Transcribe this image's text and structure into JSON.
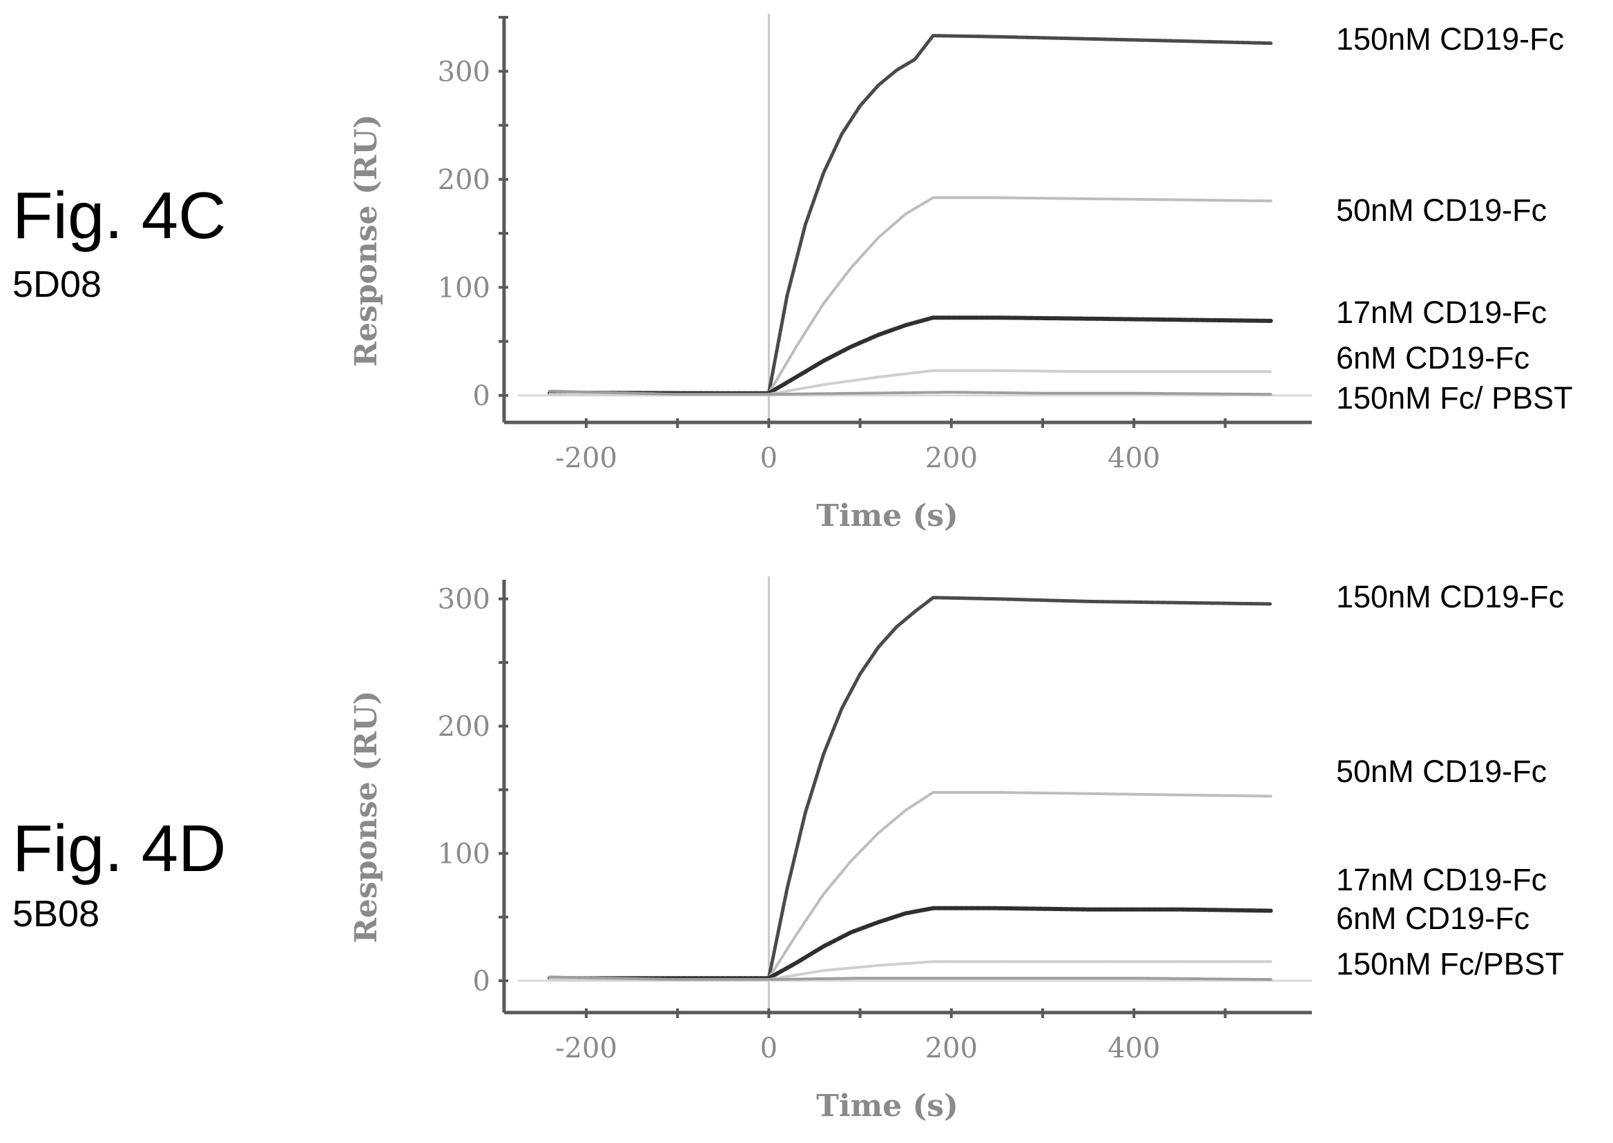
{
  "chart_data": [
    {
      "type": "line",
      "figure_label": "Fig. 4C",
      "clone": "5D08",
      "xlabel": "Time (s)",
      "ylabel": "Response (RU)",
      "xlim": [
        -290,
        595
      ],
      "ylim": [
        -25,
        350
      ],
      "x_ticks": [
        -200,
        0,
        200,
        400
      ],
      "y_ticks": [
        0,
        100,
        200,
        300
      ],
      "grid": false,
      "legend": "right, inline labels",
      "series": [
        {
          "name": "150nM CD19-Fc",
          "color": "#4a4a4a",
          "width": 5,
          "x": [
            -240,
            0,
            20,
            40,
            60,
            80,
            100,
            120,
            140,
            160,
            180,
            250,
            350,
            450,
            550
          ],
          "y": [
            3,
            2,
            92,
            158,
            206,
            242,
            268,
            287,
            301,
            311,
            333,
            332,
            330,
            328,
            326
          ]
        },
        {
          "name": "50nM CD19-Fc",
          "color": "#bdbdbd",
          "width": 4,
          "x": [
            -240,
            0,
            30,
            60,
            90,
            120,
            150,
            180,
            250,
            350,
            450,
            550
          ],
          "y": [
            2,
            2,
            45,
            85,
            118,
            146,
            168,
            183,
            183,
            182,
            181,
            180
          ]
        },
        {
          "name": "17nM CD19-Fc",
          "color": "#2f2f2f",
          "width": 6,
          "x": [
            -240,
            0,
            30,
            60,
            90,
            120,
            150,
            180,
            250,
            350,
            450,
            550
          ],
          "y": [
            2,
            2,
            17,
            32,
            45,
            56,
            65,
            72,
            72,
            71,
            70,
            69
          ]
        },
        {
          "name": "6nM CD19-Fc",
          "color": "#cfcfcf",
          "width": 4,
          "x": [
            -240,
            0,
            60,
            120,
            180,
            250,
            350,
            450,
            550
          ],
          "y": [
            1,
            1,
            10,
            17,
            23,
            23,
            22,
            22,
            22
          ]
        },
        {
          "name": "150nM Fc/ PBST",
          "color": "#9e9e9e",
          "width": 4,
          "x": [
            -240,
            -100,
            0,
            100,
            200,
            300,
            400,
            550
          ],
          "y": [
            4,
            1,
            1,
            2,
            3,
            2,
            2,
            1
          ]
        }
      ]
    },
    {
      "type": "line",
      "figure_label": "Fig. 4D",
      "clone": "5B08",
      "xlabel": "Time (s)",
      "ylabel": "Response (RU)",
      "xlim": [
        -290,
        595
      ],
      "ylim": [
        -25,
        315
      ],
      "x_ticks": [
        -200,
        0,
        200,
        400
      ],
      "y_ticks": [
        0,
        100,
        200,
        300
      ],
      "grid": false,
      "legend": "right, inline labels",
      "series": [
        {
          "name": "150nM CD19-Fc",
          "color": "#4a4a4a",
          "width": 5,
          "x": [
            -240,
            0,
            20,
            40,
            60,
            80,
            100,
            120,
            140,
            160,
            180,
            250,
            350,
            450,
            550
          ],
          "y": [
            2,
            2,
            72,
            132,
            178,
            214,
            241,
            262,
            278,
            290,
            301,
            300,
            298,
            297,
            296
          ]
        },
        {
          "name": "50nM CD19-Fc",
          "color": "#bdbdbd",
          "width": 4,
          "x": [
            -240,
            0,
            30,
            60,
            90,
            120,
            150,
            180,
            250,
            350,
            450,
            550
          ],
          "y": [
            2,
            2,
            36,
            68,
            94,
            116,
            134,
            148,
            148,
            147,
            146,
            145
          ]
        },
        {
          "name": "17nM CD19-Fc",
          "color": "#2f2f2f",
          "width": 6,
          "x": [
            -240,
            0,
            30,
            60,
            90,
            120,
            150,
            180,
            250,
            350,
            450,
            550
          ],
          "y": [
            2,
            2,
            14,
            27,
            38,
            46,
            53,
            57,
            57,
            56,
            56,
            55
          ]
        },
        {
          "name": "6nM CD19-Fc",
          "color": "#cfcfcf",
          "width": 4,
          "x": [
            -240,
            0,
            60,
            120,
            180,
            250,
            350,
            450,
            550
          ],
          "y": [
            1,
            1,
            8,
            12,
            15,
            15,
            15,
            15,
            15
          ]
        },
        {
          "name": "150nM Fc/PBST",
          "color": "#9e9e9e",
          "width": 4,
          "x": [
            -240,
            -100,
            0,
            100,
            200,
            300,
            400,
            550
          ],
          "y": [
            3,
            1,
            1,
            2,
            2,
            2,
            2,
            1
          ]
        }
      ]
    }
  ]
}
